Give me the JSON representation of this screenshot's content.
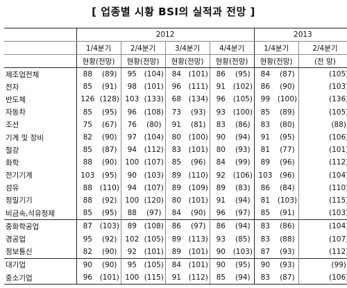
{
  "title": "[ 업종별 시황 BSI의 실적과 전망 ]",
  "years": [
    "2012",
    "2013"
  ],
  "quarters": [
    "1/4분기",
    "2/4분기",
    "3/4분기",
    "4/4분기",
    "1/4분기",
    "2/4분기"
  ],
  "sub_header": {
    "current": "현황",
    "forecast": "(전망)",
    "forecast_only": "(전 망)"
  },
  "rows": [
    {
      "label": "제조업전체",
      "v": [
        "88",
        "(89)",
        "95",
        "(104)",
        "84",
        "(101)",
        "86",
        "(95)",
        "84",
        "(87)",
        "",
        "(105)"
      ]
    },
    {
      "label": "전자",
      "v": [
        "85",
        "(91)",
        "98",
        "(101)",
        "96",
        "(111)",
        "91",
        "(102)",
        "86",
        "(90)",
        "",
        "(103)"
      ]
    },
    {
      "label": "반도체",
      "v": [
        "126",
        "(128)",
        "103",
        "(133)",
        "68",
        "(134)",
        "96",
        "(105)",
        "99",
        "(100)",
        "",
        "(136)"
      ]
    },
    {
      "label": "자동차",
      "v": [
        "85",
        "(95)",
        "96",
        "(108)",
        "73",
        "(93)",
        "93",
        "(100)",
        "85",
        "(89)",
        "",
        "(105)"
      ]
    },
    {
      "label": "조선",
      "v": [
        "75",
        "(67)",
        "76",
        "(80)",
        "91",
        "(81)",
        "83",
        "(86)",
        "83",
        "(80)",
        "",
        "(88)"
      ]
    },
    {
      "label": "기계 및 장비",
      "v": [
        "82",
        "(90)",
        "97",
        "(104)",
        "80",
        "(100)",
        "90",
        "(94)",
        "91",
        "(95)",
        "",
        "(106)"
      ]
    },
    {
      "label": "철강",
      "v": [
        "85",
        "(87)",
        "94",
        "(112)",
        "83",
        "(101)",
        "80",
        "(93)",
        "81",
        "(77)",
        "",
        "(101)"
      ]
    },
    {
      "label": "화학",
      "v": [
        "88",
        "(90)",
        "100",
        "(107)",
        "85",
        "(96)",
        "84",
        "(99)",
        "89",
        "(96)",
        "",
        "(112)"
      ]
    },
    {
      "label": "전기기계",
      "v": [
        "103",
        "(95)",
        "90",
        "(103)",
        "89",
        "(110)",
        "92",
        "(106)",
        "103",
        "(96)",
        "",
        "(104)"
      ]
    },
    {
      "label": "섬유",
      "v": [
        "88",
        "(110)",
        "94",
        "(107)",
        "89",
        "(109)",
        "89",
        "(83)",
        "86",
        "(84)",
        "",
        "(110)"
      ]
    },
    {
      "label": "정밀기기",
      "v": [
        "88",
        "(92)",
        "100",
        "(120)",
        "80",
        "(101)",
        "91",
        "(94)",
        "81",
        "(103)",
        "",
        "(115)"
      ]
    },
    {
      "label": "비금속,석유정제",
      "v": [
        "85",
        "(95)",
        "88",
        "(97)",
        "84",
        "(90)",
        "96",
        "(97)",
        "85",
        "(91)",
        "",
        "(103)"
      ]
    },
    {
      "label": "중화학공업",
      "v": [
        "87",
        "(103)",
        "89",
        "(108)",
        "86",
        "(97)",
        "86",
        "(94)",
        "83",
        "(86)",
        "",
        "(104)"
      ]
    },
    {
      "label": "경공업",
      "v": [
        "95",
        "(92)",
        "102",
        "(105)",
        "89",
        "(113)",
        "93",
        "(85)",
        "83",
        "(88)",
        "",
        "(107)"
      ]
    },
    {
      "label": "정보통신",
      "v": [
        "82",
        "(90)",
        "92",
        "(101)",
        "89",
        "(101)",
        "90",
        "(103)",
        "87",
        "(93)",
        "",
        "(112)"
      ]
    },
    {
      "label": "대기업",
      "v": [
        "90",
        "(90)",
        "95",
        "(105)",
        "84",
        "(101)",
        "90",
        "(95)",
        "90",
        "(93)",
        "",
        "(99)"
      ]
    },
    {
      "label": "중소기업",
      "v": [
        "96",
        "(101)",
        "100",
        "(115)",
        "91",
        "(112)",
        "85",
        "(94)",
        "83",
        "(87)",
        "",
        "(106)"
      ]
    }
  ]
}
